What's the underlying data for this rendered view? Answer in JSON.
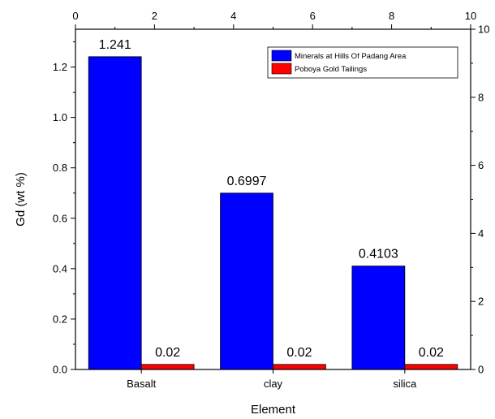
{
  "chart_data": {
    "type": "bar",
    "title": "",
    "xlabel": "Element",
    "ylabel": "Gd (wt %)",
    "categories": [
      "Basalt",
      "clay",
      "silica"
    ],
    "series": [
      {
        "name": "Minerals  at Hills Of Padang Area",
        "values": [
          1.241,
          0.6997,
          0.4103
        ],
        "value_labels": [
          "1.241",
          "0.6997",
          "0.4103"
        ],
        "color": "#0000ff"
      },
      {
        "name": "Poboya Gold Tailings",
        "values": [
          0.02,
          0.02,
          0.02
        ],
        "value_labels": [
          "0.02",
          "0.02",
          "0.02"
        ],
        "color": "#ff0000"
      }
    ],
    "ylim": [
      0,
      1.35
    ],
    "yticks": [
      0.0,
      0.2,
      0.4,
      0.6,
      0.8,
      1.0,
      1.2
    ],
    "ytick_labels": [
      "0.0",
      "0.2",
      "0.4",
      "0.6",
      "0.8",
      "1.0",
      "1.2"
    ],
    "top_axis": {
      "range": [
        0,
        10
      ],
      "ticks": [
        0,
        2,
        4,
        6,
        8,
        10
      ],
      "tick_labels": [
        "0",
        "2",
        "4",
        "6",
        "8",
        "10"
      ]
    },
    "right_axis": {
      "range": [
        0,
        10
      ],
      "ticks": [
        0,
        2,
        4,
        6,
        8,
        10
      ],
      "tick_labels": [
        "0",
        "2",
        "4",
        "6",
        "8",
        "10"
      ]
    },
    "legend_position": "top-right",
    "grid": false
  }
}
